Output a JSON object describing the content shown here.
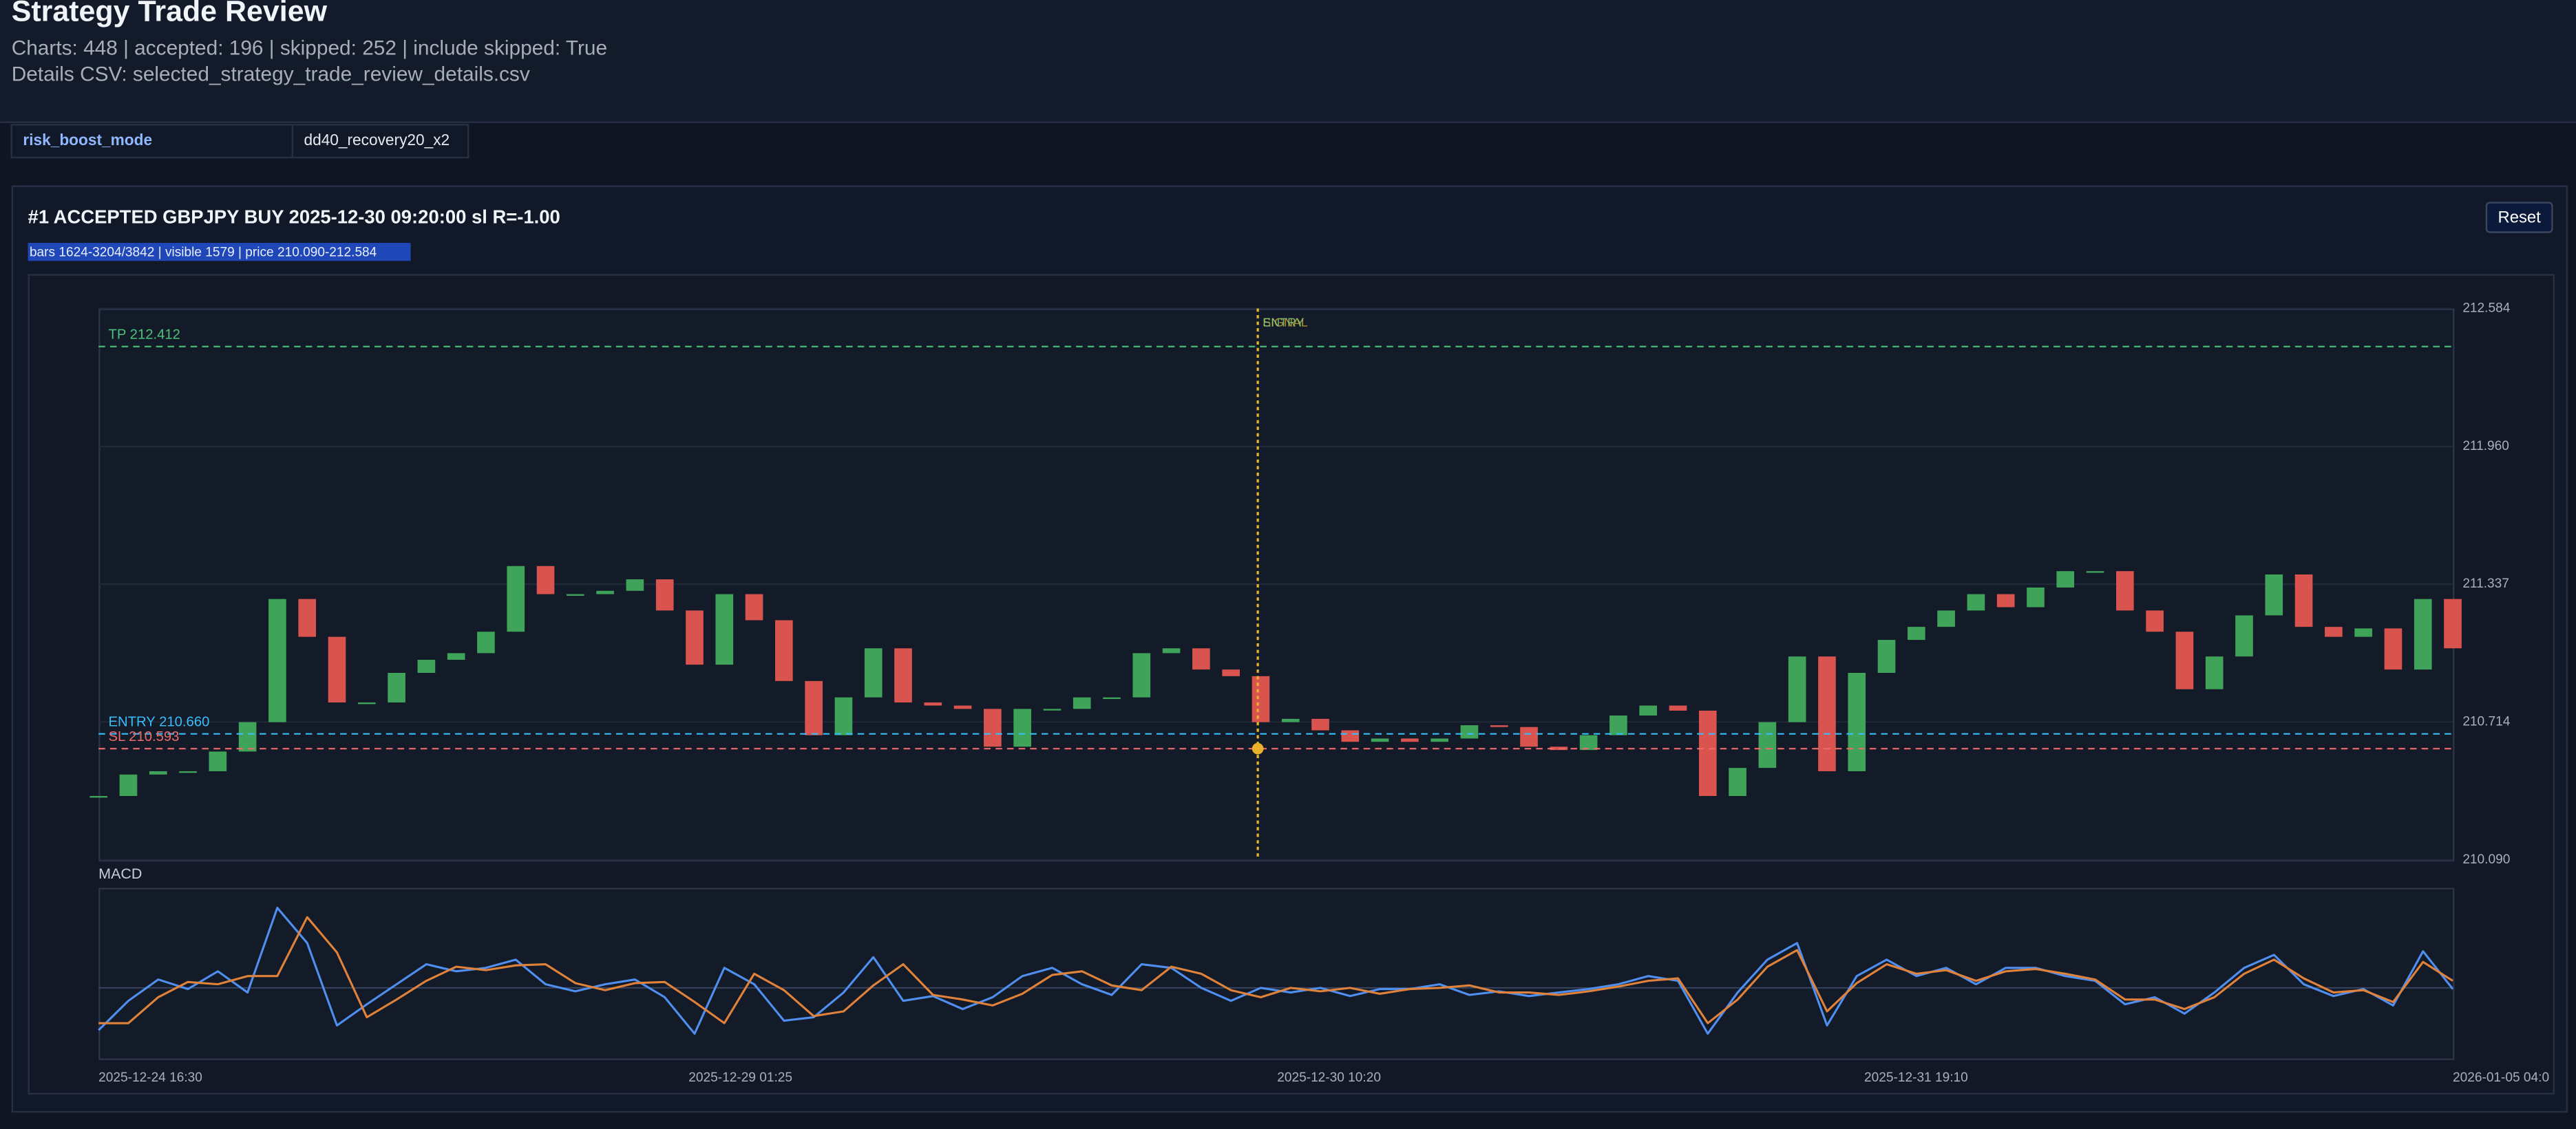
{
  "header": {
    "title": "Strategy Trade Review",
    "subtitle": "Charts: 448 | accepted: 196 | skipped: 252 | include skipped: True",
    "details": "Details CSV: selected_strategy_trade_review_details.csv"
  },
  "params": {
    "rows": [
      [
        "risk_boost_mode",
        "dd40_recovery20_x2"
      ]
    ]
  },
  "card": {
    "title": "#1 ACCEPTED GBPJPY BUY 2025-12-30 09:20:00 sl R=-1.00",
    "info": "bars 1624-3204/3842 | visible 1579 | price 210.090-212.584",
    "reset_button": "Reset"
  },
  "chart_data": [
    {
      "type": "candlestick",
      "x": [
        1624,
        1644,
        1664,
        1684,
        1704,
        1724,
        1744,
        1764,
        1784,
        1804,
        1824,
        1844,
        1864,
        1884,
        1904,
        1924,
        1944,
        1964,
        1984,
        2004,
        2024,
        2044,
        2064,
        2084,
        2104,
        2124,
        2144,
        2164,
        2184,
        2204,
        2224,
        2244,
        2264,
        2284,
        2304,
        2324,
        2344,
        2364,
        2384,
        2404,
        2424,
        2444,
        2464,
        2484,
        2504,
        2524,
        2544,
        2564,
        2584,
        2604,
        2624,
        2644,
        2664,
        2684,
        2704,
        2724,
        2744,
        2764,
        2784,
        2804,
        2824,
        2844,
        2864,
        2884,
        2904,
        2924,
        2944,
        2964,
        2984,
        3004,
        3024,
        3044,
        3064,
        3084,
        3104,
        3124,
        3144,
        3164,
        3184,
        3204
      ],
      "close": [
        210.379,
        210.476,
        210.491,
        210.491,
        210.58,
        210.713,
        211.27,
        211.099,
        210.802,
        210.802,
        210.936,
        210.995,
        211.025,
        211.122,
        211.419,
        211.292,
        211.292,
        211.307,
        211.359,
        211.218,
        210.973,
        211.292,
        211.174,
        210.899,
        210.654,
        210.825,
        211.047,
        210.802,
        210.788,
        210.773,
        210.602,
        210.773,
        210.773,
        210.825,
        210.825,
        211.025,
        211.047,
        210.951,
        210.921,
        210.713,
        210.728,
        210.676,
        210.624,
        210.639,
        210.624,
        210.639,
        210.699,
        210.691,
        210.602,
        210.587,
        210.654,
        210.743,
        210.788,
        210.765,
        210.379,
        210.506,
        210.713,
        211.01,
        210.491,
        210.936,
        211.085,
        211.144,
        211.218,
        211.292,
        211.233,
        211.322,
        211.396,
        211.396,
        211.218,
        211.122,
        210.862,
        211.01,
        211.196,
        211.381,
        211.144,
        211.099,
        211.137,
        210.951,
        211.27,
        211.047
      ],
      "up_color": "#3fa35a",
      "down_color": "#d9534f",
      "xlim": [
        1624,
        3204
      ],
      "ylim": [
        210.09,
        212.584
      ],
      "yticks": [
        {
          "value": 210.09,
          "label": "210.090"
        },
        210.714,
        211.337,
        {
          "value": 211.96,
          "label": "211.960"
        },
        212.584
      ],
      "grid": true,
      "levels": [
        {
          "value": 212.412,
          "label": "TP 212.412",
          "color": "#4ec27a"
        },
        {
          "value": 210.66,
          "label": "ENTRY 210.660",
          "color": "#38bdf8"
        },
        {
          "value": 210.593,
          "label": "SL 210.593",
          "color": "#ef6a6a"
        }
      ],
      "signal_x": 2402,
      "signal_color": "#e8b22a",
      "markers": [
        {
          "label": "SIGNAL",
          "color": "#c8a62a"
        },
        {
          "label": "ENTRY",
          "color": "#8fcf7a"
        }
      ]
    },
    {
      "type": "line",
      "title": "MACD",
      "x": [
        1624,
        1644,
        1664,
        1684,
        1704,
        1724,
        1744,
        1764,
        1784,
        1804,
        1824,
        1844,
        1864,
        1884,
        1904,
        1924,
        1944,
        1964,
        1984,
        2004,
        2024,
        2044,
        2064,
        2084,
        2104,
        2124,
        2144,
        2164,
        2184,
        2204,
        2224,
        2244,
        2264,
        2284,
        2304,
        2324,
        2344,
        2364,
        2384,
        2404,
        2424,
        2444,
        2464,
        2484,
        2504,
        2524,
        2544,
        2564,
        2584,
        2604,
        2624,
        2644,
        2664,
        2684,
        2704,
        2724,
        2744,
        2764,
        2784,
        2804,
        2824,
        2844,
        2864,
        2884,
        2904,
        2924,
        2944,
        2964,
        2984,
        3004,
        3024,
        3044,
        3064,
        3084,
        3104,
        3124,
        3144,
        3164,
        3184,
        3204
      ],
      "series": [
        {
          "color": "#4f8ff0",
          "values": [
            -0.036,
            -0.011,
            0.007,
            -0.001,
            0.014,
            -0.004,
            0.068,
            0.038,
            -0.032,
            -0.014,
            0.003,
            0.02,
            0.014,
            0.017,
            0.024,
            0.003,
            -0.003,
            0.003,
            0.007,
            -0.008,
            -0.039,
            0.017,
            0.003,
            -0.028,
            -0.025,
            -0.004,
            0.026,
            -0.011,
            -0.007,
            -0.018,
            -0.008,
            0.01,
            0.017,
            0.003,
            -0.006,
            0.02,
            0.017,
            0.0,
            -0.011,
            0.0,
            -0.004,
            0.0,
            -0.007,
            -0.001,
            -0.001,
            0.003,
            -0.006,
            -0.003,
            -0.007,
            -0.004,
            -0.001,
            0.003,
            0.01,
            0.006,
            -0.039,
            -0.004,
            0.024,
            0.038,
            -0.032,
            0.01,
            0.024,
            0.01,
            0.017,
            0.003,
            0.017,
            0.017,
            0.01,
            0.006,
            -0.014,
            -0.008,
            -0.022,
            -0.004,
            0.017,
            0.028,
            0.003,
            -0.007,
            -0.001,
            -0.015,
            0.031,
            -0.001
          ]
        },
        {
          "color": "#e0823a",
          "values": [
            -0.03,
            -0.03,
            -0.008,
            0.005,
            0.003,
            0.01,
            0.01,
            0.06,
            0.03,
            -0.025,
            -0.01,
            0.006,
            0.018,
            0.015,
            0.019,
            0.02,
            0.004,
            -0.002,
            0.004,
            0.005,
            -0.012,
            -0.03,
            0.012,
            -0.002,
            -0.024,
            -0.02,
            0.002,
            0.02,
            -0.006,
            -0.01,
            -0.015,
            -0.005,
            0.011,
            0.014,
            0.002,
            -0.002,
            0.018,
            0.012,
            -0.002,
            -0.008,
            0.0,
            -0.003,
            0.0,
            -0.005,
            -0.001,
            0.0,
            0.002,
            -0.004,
            -0.004,
            -0.006,
            -0.003,
            0.001,
            0.006,
            0.008,
            -0.03,
            -0.01,
            0.018,
            0.032,
            -0.02,
            0.004,
            0.02,
            0.012,
            0.015,
            0.006,
            0.014,
            0.016,
            0.012,
            0.007,
            -0.01,
            -0.01,
            -0.018,
            -0.008,
            0.012,
            0.024,
            0.008,
            -0.004,
            -0.002,
            -0.012,
            0.022,
            0.006
          ]
        }
      ],
      "xlim": [
        1624,
        3204
      ],
      "ylim": [
        -0.06,
        0.085
      ],
      "xticks": [
        {
          "value": 1624,
          "label": "2025-12-24 16:30"
        },
        {
          "value": 2020,
          "label": "2025-12-29 01:25"
        },
        {
          "value": 2415,
          "label": "2025-12-30 10:20"
        },
        {
          "value": 2809,
          "label": "2025-12-31 19:10"
        },
        {
          "value": 3204,
          "label": "2026-01-05 04:0"
        }
      ]
    }
  ]
}
